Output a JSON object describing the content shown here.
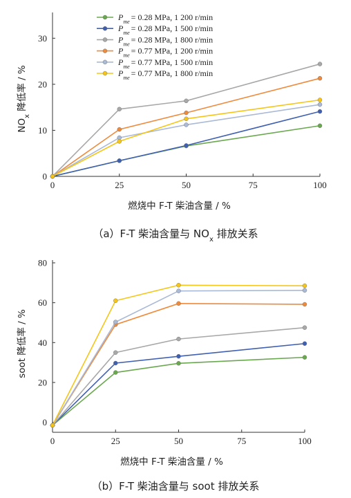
{
  "series_styles": [
    {
      "color": "#6aa84f",
      "p": "0.28",
      "rpm": "1 200"
    },
    {
      "color": "#3f5fb0",
      "p": "0.28",
      "rpm": "1 500"
    },
    {
      "color": "#a8a8a8",
      "p": "0.28",
      "rpm": "1 800"
    },
    {
      "color": "#ee8a3c",
      "p": "0.77",
      "rpm": "1 200"
    },
    {
      "color": "#a9b9d6",
      "p": "0.77",
      "rpm": "1 500"
    },
    {
      "color": "#f5c518",
      "p": "0.77",
      "rpm": "1 800"
    }
  ],
  "legend": {
    "symbol": "P",
    "subscript": "me",
    "entries": [
      "= 0.28 MPa, 1 200 r/min",
      "= 0.28 MPa, 1 500 r/min",
      "= 0.28 MPa, 1 800 r/min",
      "= 0.77 MPa, 1 200 r/min",
      "= 0.77 MPa, 1 500 r/min",
      "= 0.77 MPa, 1 800 r/min"
    ]
  },
  "chart_data": [
    {
      "type": "line",
      "caption": "（a）F-T 柴油含量与 NOx 排放关系",
      "caption_parts": {
        "pre": "（a）F-T 柴油含量与 NO",
        "sub": "x",
        "post": " 排放关系"
      },
      "xlabel": "燃烧中 F-T 柴油含量 / %",
      "ylabel": "NOx 降低率 / %",
      "ylabel_parts": {
        "pre": "NO",
        "sub": "x",
        "post": " 降低率 / %"
      },
      "xlim": [
        0,
        100
      ],
      "ylim": [
        0,
        35
      ],
      "xticks": [
        0,
        25,
        50,
        75,
        100
      ],
      "yticks": [
        0,
        10,
        20,
        30
      ],
      "x": [
        0,
        25,
        50,
        100
      ],
      "series": [
        {
          "values": [
            0,
            3.4,
            6.6,
            11.0
          ]
        },
        {
          "values": [
            0,
            3.4,
            6.7,
            14.1
          ]
        },
        {
          "values": [
            0,
            14.6,
            16.4,
            24.4
          ]
        },
        {
          "values": [
            0,
            10.2,
            13.8,
            21.3
          ]
        },
        {
          "values": [
            0,
            8.4,
            11.2,
            15.6
          ]
        },
        {
          "values": [
            0,
            7.6,
            12.5,
            16.6
          ]
        }
      ]
    },
    {
      "type": "line",
      "caption": "（b）F-T 柴油含量与 soot 排放关系",
      "xlabel": "燃烧中 F-T 柴油含量 / %",
      "ylabel": "soot 降低率 / %",
      "xlim": [
        0,
        100
      ],
      "ylim": [
        -5,
        80
      ],
      "xticks": [
        0,
        25,
        50,
        75,
        100
      ],
      "yticks": [
        0,
        20,
        40,
        60,
        80
      ],
      "x": [
        0,
        25,
        50,
        100
      ],
      "series": [
        {
          "values": [
            -1.5,
            25.0,
            29.6,
            32.6
          ]
        },
        {
          "values": [
            -1.5,
            29.7,
            33.1,
            39.5
          ]
        },
        {
          "values": [
            -1.5,
            35.0,
            41.8,
            47.5
          ]
        },
        {
          "values": [
            -1.5,
            49.0,
            59.6,
            59.2
          ]
        },
        {
          "values": [
            -1.5,
            50.3,
            65.9,
            66.2
          ]
        },
        {
          "values": [
            -1.5,
            61.0,
            68.8,
            68.5
          ]
        }
      ]
    }
  ]
}
